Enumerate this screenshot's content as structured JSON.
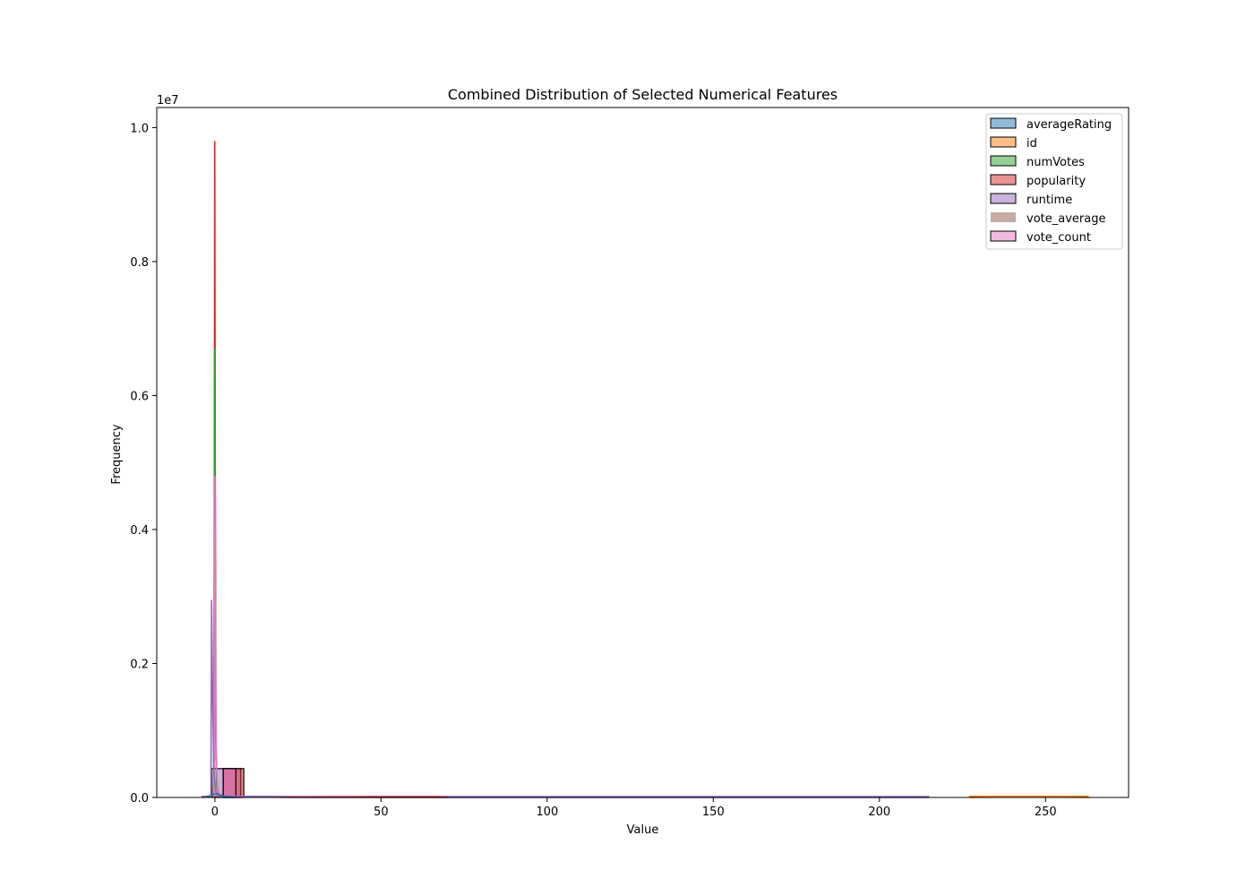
{
  "chart_data": {
    "type": "histogram",
    "title": "Combined Distribution of Selected Numerical Features",
    "xlabel": "Value",
    "ylabel": "Frequency",
    "y_scale_label": "1e7",
    "xlim": [
      -17.5,
      275
    ],
    "ylim": [
      0,
      10300000
    ],
    "x_ticks": [
      0,
      50,
      100,
      150,
      200,
      250
    ],
    "y_ticks": [
      0.0,
      0.2,
      0.4,
      0.6,
      0.8,
      1.0
    ],
    "y_tick_multiplier": 10000000,
    "legend_position": "top-right",
    "series": [
      {
        "name": "averageRating",
        "color": "#1f77b4"
      },
      {
        "name": "id",
        "color": "#ff7f0e"
      },
      {
        "name": "numVotes",
        "color": "#2ca02c"
      },
      {
        "name": "popularity",
        "color": "#d62728"
      },
      {
        "name": "runtime",
        "color": "#9467bd"
      },
      {
        "name": "vote_average",
        "color": "#8c564b"
      },
      {
        "name": "vote_count",
        "color": "#e377c2"
      }
    ],
    "bars": [
      {
        "series": "runtime",
        "x0": -1.0,
        "x1": 7.8,
        "value": 430000
      },
      {
        "series": "popularity",
        "x0": 2.5,
        "x1": 8.7,
        "value": 430000
      },
      {
        "series": "vote_count",
        "x0": 2.5,
        "x1": 6.3,
        "value": 430000
      }
    ],
    "kde_curves": [
      {
        "series": "popularity",
        "points": [
          [
            -0.6,
            0
          ],
          [
            -0.3,
            300000
          ],
          [
            -0.15,
            5000000
          ],
          [
            -0.05,
            9800000
          ],
          [
            0.1,
            5000000
          ],
          [
            0.3,
            900000
          ],
          [
            0.6,
            200000
          ],
          [
            1.2,
            50000
          ],
          [
            3,
            10000
          ],
          [
            25,
            0
          ],
          [
            70,
            0
          ]
        ]
      },
      {
        "series": "numVotes",
        "points": [
          [
            -0.4,
            0
          ],
          [
            -0.2,
            2500000
          ],
          [
            -0.05,
            6700000
          ],
          [
            0.1,
            3500000
          ],
          [
            0.3,
            600000
          ],
          [
            0.6,
            150000
          ],
          [
            1.2,
            30000
          ],
          [
            3,
            0
          ]
        ]
      },
      {
        "series": "vote_count",
        "points": [
          [
            -0.3,
            0
          ],
          [
            -0.15,
            2000000
          ],
          [
            0.0,
            4800000
          ],
          [
            0.15,
            2000000
          ],
          [
            0.4,
            500000
          ],
          [
            0.9,
            100000
          ],
          [
            2,
            0
          ]
        ]
      },
      {
        "series": "runtime",
        "points": [
          [
            -1.2,
            0
          ],
          [
            -1.0,
            2950000
          ],
          [
            -0.7,
            1500000
          ],
          [
            -0.3,
            400000
          ],
          [
            0.2,
            100000
          ],
          [
            0.8,
            20000
          ],
          [
            50,
            0
          ],
          [
            120,
            0
          ],
          [
            215,
            0
          ]
        ]
      },
      {
        "series": "averageRating",
        "points": [
          [
            -4,
            0
          ],
          [
            -1,
            30000
          ],
          [
            0.5,
            60000
          ],
          [
            2,
            20000
          ],
          [
            6,
            0
          ]
        ]
      },
      {
        "series": "id",
        "points": [
          [
            227,
            0
          ],
          [
            245,
            8000
          ],
          [
            263,
            0
          ]
        ]
      }
    ]
  }
}
